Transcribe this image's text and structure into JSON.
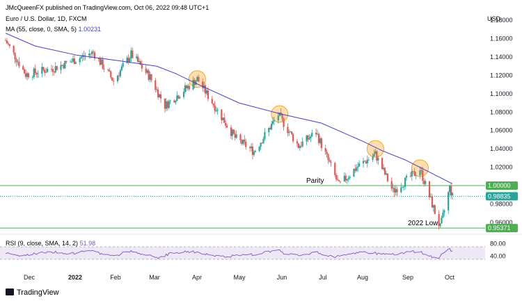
{
  "header": {
    "publisher": "JMcQueenFX published on TradingView.com, Oct 06, 2022 09:48 UTC+1",
    "symbol": "Euro / U.S. Dollar, 1D, FXCM",
    "ma_label": "MA (55, close, 0, SMA, 5)",
    "ma_value": "1.00231",
    "currency": "USD"
  },
  "footer": {
    "brand": "TradingView"
  },
  "colors": {
    "up": "#26a69a",
    "down": "#ef5350",
    "ma": "#3f3fd6",
    "level": "#4caf50",
    "circle": "#ffb74d",
    "rsi": "#7e57c2",
    "rsi_fill": "#ede7f6"
  },
  "chart_data": {
    "type": "candlestick",
    "title": "Euro / U.S. Dollar, 1D, FXCM",
    "y_axis": {
      "ticks": [
        "1.18000",
        "1.16000",
        "1.14000",
        "1.12000",
        "1.10000",
        "1.08000",
        "1.06000",
        "1.04000",
        "1.02000",
        "0.98000",
        "0.96000"
      ],
      "range": [
        0.95,
        1.187
      ]
    },
    "x_axis": {
      "labels": [
        "Dec",
        "2022",
        "Feb",
        "Mar",
        "Apr",
        "May",
        "Jun",
        "Jul",
        "Aug",
        "Sep",
        "Oct"
      ],
      "bold": [
        "2022"
      ],
      "start_date": "2021-11-09",
      "end_date": "2022-10-06"
    },
    "series": [
      {
        "name": "MA (55, close, 0, SMA, 5)",
        "type": "line",
        "points": [
          [
            "2021-11-09",
            1.166
          ],
          [
            "2021-12-01",
            1.152
          ],
          [
            "2022-01-01",
            1.142
          ],
          [
            "2022-02-01",
            1.136
          ],
          [
            "2022-03-01",
            1.13
          ],
          [
            "2022-03-15",
            1.122
          ],
          [
            "2022-04-01",
            1.11
          ],
          [
            "2022-05-01",
            1.09
          ],
          [
            "2022-06-01",
            1.078
          ],
          [
            "2022-07-01",
            1.068
          ],
          [
            "2022-08-01",
            1.048
          ],
          [
            "2022-08-15",
            1.038
          ],
          [
            "2022-09-01",
            1.028
          ],
          [
            "2022-10-06",
            1.002
          ]
        ]
      },
      {
        "name": "EUR/USD close (approx.)",
        "type": "candle-path",
        "points": [
          [
            "2021-11-09",
            1.158
          ],
          [
            "2021-11-24",
            1.121
          ],
          [
            "2021-12-15",
            1.128
          ],
          [
            "2022-01-13",
            1.145
          ],
          [
            "2022-01-28",
            1.114
          ],
          [
            "2022-02-10",
            1.143
          ],
          [
            "2022-02-24",
            1.118
          ],
          [
            "2022-03-07",
            1.087
          ],
          [
            "2022-03-31",
            1.116
          ],
          [
            "2022-04-28",
            1.052
          ],
          [
            "2022-05-12",
            1.037
          ],
          [
            "2022-05-30",
            1.077
          ],
          [
            "2022-06-14",
            1.043
          ],
          [
            "2022-06-27",
            1.058
          ],
          [
            "2022-07-14",
            1.0
          ],
          [
            "2022-07-27",
            1.02
          ],
          [
            "2022-08-10",
            1.034
          ],
          [
            "2022-08-23",
            0.994
          ],
          [
            "2022-09-12",
            1.018
          ],
          [
            "2022-09-27",
            0.954
          ],
          [
            "2022-10-04",
            0.998
          ],
          [
            "2022-10-06",
            0.988
          ]
        ]
      }
    ],
    "levels": [
      {
        "label": "Parity",
        "value": 1.0,
        "badge": "1.00000"
      },
      {
        "label": "2022 Low",
        "value": 0.95371,
        "badge": "0.95371"
      }
    ],
    "last_price": {
      "value": 0.98835,
      "badge": "0.98835"
    },
    "highlights": [
      {
        "date": "2022-03-31",
        "value": 1.116
      },
      {
        "date": "2022-05-31",
        "value": 1.078
      },
      {
        "date": "2022-08-10",
        "value": 1.04
      },
      {
        "date": "2022-09-12",
        "value": 1.019
      }
    ],
    "rsi": {
      "label": "RSI (9, close, SMA, 14, 2)",
      "value": "51.98",
      "ticks": [
        "80.00",
        "40.00"
      ],
      "band": [
        30,
        70
      ],
      "range": [
        10,
        90
      ]
    }
  }
}
